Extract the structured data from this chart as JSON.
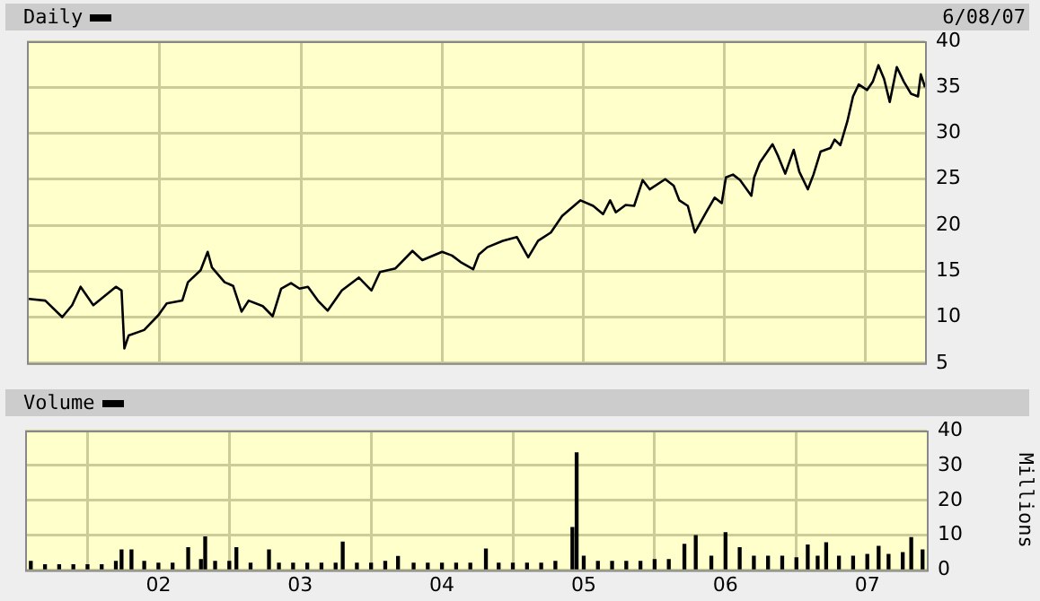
{
  "chart_data": [
    {
      "type": "line",
      "legend": "top left",
      "grid": true,
      "tick_labels": "y",
      "annotations": [
        "6/08/07"
      ],
      "xlim": [
        2001.06,
        2007.42
      ],
      "xticks": [
        {
          "value": 2002,
          "label": null
        },
        {
          "value": 2003,
          "label": null
        },
        {
          "value": 2004,
          "label": null
        },
        {
          "value": 2005,
          "label": null
        },
        {
          "value": 2006,
          "label": null
        },
        {
          "value": 2007,
          "label": null
        }
      ],
      "ylim": [
        5,
        40
      ],
      "yticks": [
        5,
        10,
        15,
        20,
        25,
        30,
        35,
        40
      ],
      "series": [
        {
          "name": "Daily",
          "color": "#000000",
          "x": [
            2001.06,
            2001.19,
            2001.31,
            2001.38,
            2001.44,
            2001.53,
            2001.61,
            2001.69,
            2001.73,
            2001.75,
            2001.78,
            2001.89,
            2001.99,
            2002.05,
            2002.16,
            2002.2,
            2002.29,
            2002.34,
            2002.37,
            2002.46,
            2002.52,
            2002.58,
            2002.63,
            2002.73,
            2002.8,
            2002.86,
            2002.93,
            2002.99,
            2003.05,
            2003.12,
            2003.19,
            2003.29,
            2003.41,
            2003.5,
            2003.56,
            2003.67,
            2003.79,
            2003.86,
            2004.0,
            2004.07,
            2004.13,
            2004.22,
            2004.26,
            2004.32,
            2004.43,
            2004.53,
            2004.61,
            2004.68,
            2004.77,
            2004.85,
            2004.98,
            2005.07,
            2005.14,
            2005.19,
            2005.23,
            2005.3,
            2005.36,
            2005.42,
            2005.47,
            2005.58,
            2005.64,
            2005.68,
            2005.74,
            2005.79,
            2005.87,
            2005.93,
            2005.98,
            2006.01,
            2006.06,
            2006.11,
            2006.19,
            2006.21,
            2006.25,
            2006.34,
            2006.38,
            2006.43,
            2006.49,
            2006.53,
            2006.59,
            2006.63,
            2006.68,
            2006.75,
            2006.78,
            2006.82,
            2006.87,
            2006.91,
            2006.95,
            2007.01,
            2007.05,
            2007.09,
            2007.13,
            2007.17,
            2007.22,
            2007.27,
            2007.32,
            2007.37,
            2007.39,
            2007.42
          ],
          "values": [
            12.0,
            11.8,
            10.0,
            11.3,
            13.3,
            11.3,
            12.3,
            13.3,
            12.9,
            6.6,
            8.0,
            8.6,
            10.2,
            11.5,
            11.8,
            13.8,
            15.1,
            17.1,
            15.4,
            13.8,
            13.4,
            10.6,
            11.8,
            11.2,
            10.1,
            13.1,
            13.7,
            13.1,
            13.3,
            11.8,
            10.7,
            12.9,
            14.3,
            12.9,
            14.9,
            15.3,
            17.2,
            16.2,
            17.1,
            16.7,
            16.0,
            15.2,
            16.8,
            17.6,
            18.3,
            18.7,
            16.5,
            18.3,
            19.2,
            21.0,
            22.7,
            22.1,
            21.2,
            22.7,
            21.4,
            22.2,
            22.1,
            24.9,
            23.9,
            25.0,
            24.3,
            22.7,
            22.1,
            19.2,
            21.4,
            23.0,
            22.4,
            25.2,
            25.5,
            24.9,
            23.2,
            25.2,
            26.8,
            28.8,
            27.5,
            25.6,
            28.2,
            25.8,
            23.9,
            25.5,
            28.0,
            28.4,
            29.3,
            28.7,
            31.3,
            34.0,
            35.3,
            34.7,
            35.6,
            37.4,
            35.9,
            33.4,
            37.2,
            35.6,
            34.3,
            34.0,
            36.4,
            35.0
          ]
        }
      ]
    },
    {
      "type": "bar",
      "legend": "top left",
      "grid": true,
      "ylabel": "Millions",
      "xlim": [
        2001.06,
        2007.42
      ],
      "xticks": [
        {
          "value": 2002,
          "label": "02"
        },
        {
          "value": 2003,
          "label": "03"
        },
        {
          "value": 2004,
          "label": "04"
        },
        {
          "value": 2005,
          "label": "05"
        },
        {
          "value": 2006,
          "label": "06"
        },
        {
          "value": 2007,
          "label": "07"
        }
      ],
      "ylim": [
        0,
        40
      ],
      "yticks": [
        0,
        10,
        20,
        30,
        40
      ],
      "series": [
        {
          "name": "Volume",
          "color": "#000000",
          "x": [
            2001.1,
            2001.2,
            2001.3,
            2001.4,
            2001.5,
            2001.6,
            2001.7,
            2001.74,
            2001.81,
            2001.9,
            2002.0,
            2002.1,
            2002.21,
            2002.3,
            2002.33,
            2002.4,
            2002.5,
            2002.55,
            2002.65,
            2002.78,
            2002.85,
            2002.95,
            2003.05,
            2003.15,
            2003.25,
            2003.3,
            2003.4,
            2003.5,
            2003.6,
            2003.69,
            2003.8,
            2003.9,
            2004.0,
            2004.1,
            2004.2,
            2004.31,
            2004.4,
            2004.5,
            2004.6,
            2004.7,
            2004.8,
            2004.92,
            2004.95,
            2005.0,
            2005.1,
            2005.2,
            2005.3,
            2005.4,
            2005.5,
            2005.6,
            2005.71,
            2005.79,
            2005.9,
            2006.0,
            2006.1,
            2006.2,
            2006.3,
            2006.4,
            2006.5,
            2006.58,
            2006.65,
            2006.71,
            2006.8,
            2006.9,
            2007.0,
            2007.08,
            2007.15,
            2007.25,
            2007.31,
            2007.39
          ],
          "values": [
            2.5,
            1.5,
            1.5,
            1.5,
            1.5,
            1.5,
            2.5,
            5.8,
            5.8,
            2.5,
            2,
            2,
            6.4,
            3,
            9.5,
            2.5,
            2.5,
            6.4,
            2,
            5.8,
            2,
            2,
            2,
            2,
            2,
            8.0,
            2,
            2,
            2.5,
            3.9,
            2,
            2,
            2,
            2,
            2,
            6.0,
            2,
            2,
            2,
            2,
            2.5,
            12.2,
            33.6,
            4,
            2.5,
            2.5,
            2.5,
            2.5,
            3,
            3,
            7.4,
            9.9,
            4,
            10.7,
            6.4,
            4,
            4,
            4,
            3.5,
            7.2,
            4,
            7.8,
            4,
            4,
            4.5,
            6.8,
            4.5,
            5,
            9.3,
            5.8
          ]
        }
      ]
    }
  ]
}
